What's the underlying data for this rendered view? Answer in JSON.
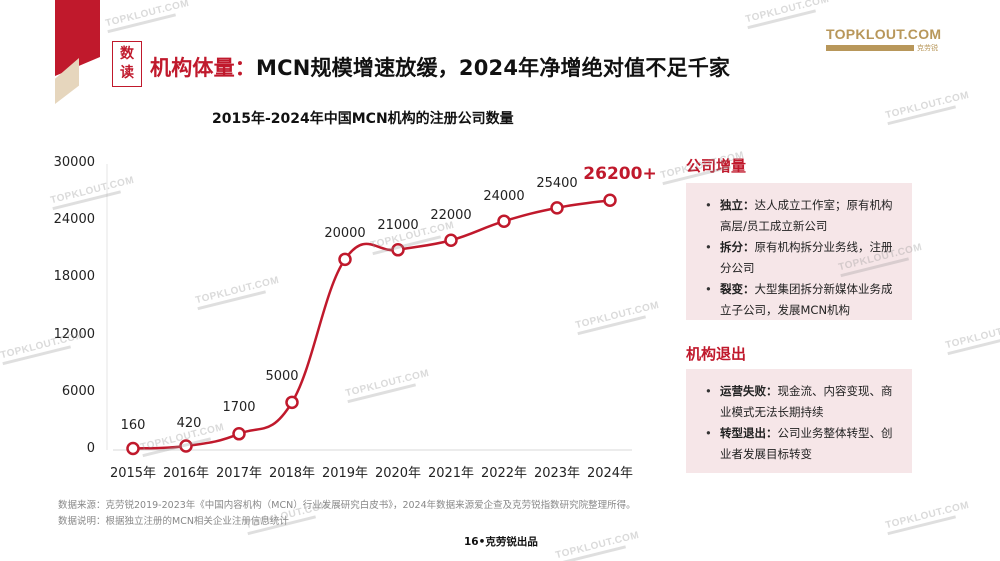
{
  "header": {
    "badge_line1": "数",
    "badge_line2": "读",
    "headline_red": "机构体量：",
    "headline_black": "MCN规模增速放缓，2024年净增绝对值不足千家"
  },
  "logo": {
    "text": "TOPKLOUT.COM",
    "sub_cn": "克劳锐"
  },
  "chart_data": {
    "type": "line",
    "title": "2015年-2024年中国MCN机构的注册公司数量",
    "categories": [
      "2015年",
      "2016年",
      "2017年",
      "2018年",
      "2019年",
      "2020年",
      "2021年",
      "2022年",
      "2023年",
      "2024年"
    ],
    "values": [
      160,
      420,
      1700,
      5000,
      20000,
      21000,
      22000,
      24000,
      25400,
      26200
    ],
    "data_labels": [
      "160",
      "420",
      "1700",
      "5000",
      "20000",
      "21000",
      "22000",
      "24000",
      "25400",
      "26200+"
    ],
    "xlabel": "",
    "ylabel": "",
    "ylim": [
      0,
      30000
    ],
    "yticks": [
      "0",
      "6000",
      "12000",
      "18000",
      "24000",
      "30000"
    ],
    "grid": false,
    "legend": null,
    "line_color": "#c0192c",
    "smooth": true
  },
  "sidebar": {
    "growth": {
      "title": "公司增量",
      "items": [
        {
          "bold": "独立：",
          "text": "达人成立工作室；原有机构高层/员工成立新公司"
        },
        {
          "bold": "拆分：",
          "text": "原有机构拆分业务线，注册分公司"
        },
        {
          "bold": "裂变：",
          "text": "大型集团拆分新媒体业务成立子公司，发展MCN机构"
        }
      ]
    },
    "exit": {
      "title": "机构退出",
      "items": [
        {
          "bold": "运营失败：",
          "text": "现金流、内容变现、商业模式无法长期持续"
        },
        {
          "bold": "转型退出：",
          "text": "公司业务整体转型、创业者发展目标转变"
        }
      ]
    }
  },
  "footer": {
    "source": "数据来源：克劳锐2019-2023年《中国内容机构（MCN）行业发展研究白皮书》，2024年数据来源爱企查及克劳锐指数研究院整理所得。",
    "note": "数据说明：根据独立注册的MCN相关企业注册信息统计",
    "page": "16•克劳锐出品"
  },
  "watermark": "TOPKLOUT.COM",
  "colors": {
    "accent_red": "#c0192c",
    "beige": "#e6d6bd",
    "panel_bg": "#f6e6e8",
    "logo_gold": "#b8975a"
  }
}
